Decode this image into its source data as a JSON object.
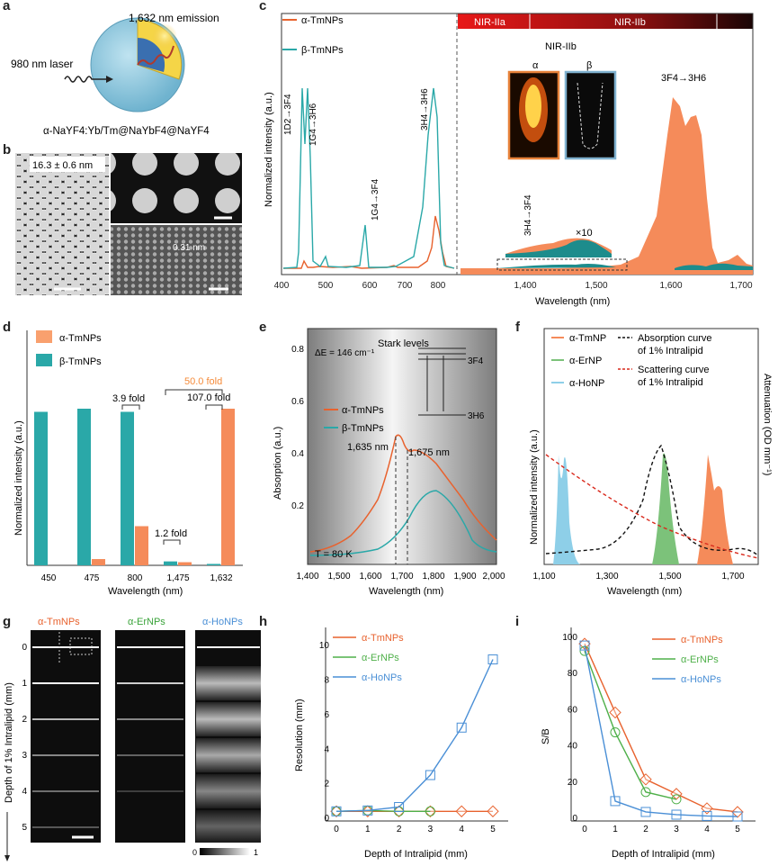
{
  "panel_letters": {
    "a": "a",
    "b": "b",
    "c": "c",
    "d": "d",
    "e": "e",
    "f": "f",
    "g": "g",
    "h": "h",
    "i": "i"
  },
  "panel_a": {
    "emission": "1,632 nm emission",
    "laser": "980 nm laser",
    "formula": "α-NaYF4:Yb/Tm@NaYbF4@NaYF4"
  },
  "panel_b": {
    "size": "16.3 ± 0.6 nm",
    "lattice": "0.31 nm"
  },
  "panel_c": {
    "legend": [
      "α-TmNPs",
      "β-TmNPs"
    ],
    "ylabel": "Normalized intensity (a.u.)",
    "xlabel": "Wavelength (nm)",
    "bands": [
      "NIR-IIa",
      "NIR-IIb"
    ],
    "inset_title": "NIR-IIb",
    "inset_labels": [
      "α",
      "β"
    ],
    "magnify": "×10",
    "transitions": [
      "1D2→3F4",
      "1G4→3H6",
      "1G4→3F4",
      "3H4→3H6",
      "3H4→3F4",
      "3F4→3H6"
    ],
    "left_ticks": [
      "400",
      "500",
      "600",
      "700",
      "800"
    ],
    "right_ticks": [
      "1,400",
      "1,500",
      "1,600",
      "1,700"
    ]
  },
  "panel_d": {
    "legend": [
      "α-TmNPs",
      "β-TmNPs"
    ],
    "ylabel": "Normalized intensity (a.u.)",
    "xlabel": "Wavelength (nm)",
    "folds": [
      "3.9 fold",
      "1.2 fold",
      "50.0 fold",
      "107.0 fold"
    ],
    "chart_data": {
      "type": "bar",
      "categories": [
        "450",
        "475",
        "800",
        "1,475",
        "1,632"
      ],
      "series": [
        {
          "name": "α-TmNPs",
          "values": [
            0.0,
            0.04,
            0.25,
            0.02,
            1.0
          ]
        },
        {
          "name": "β-TmNPs",
          "values": [
            0.98,
            1.0,
            0.98,
            0.025,
            0.009
          ]
        }
      ],
      "ylim": [
        0,
        1.5
      ]
    }
  },
  "panel_e": {
    "legend": [
      "α-TmNPs",
      "β-TmNPs"
    ],
    "ylabel": "Absorption (a.u.)",
    "xlabel": "Wavelength (nm)",
    "delta": "ΔE = 146 cm⁻¹",
    "stark": "Stark levels",
    "level_upper": "3F4",
    "level_lower": "3H6",
    "peak1": "1,635 nm",
    "peak2": "1,675 nm",
    "temp": "T = 80 K",
    "xticks": [
      "1,400",
      "1,500",
      "1,600",
      "1,700",
      "1,800",
      "1,900",
      "2,000"
    ],
    "yticks": [
      "0.2",
      "0.4",
      "0.6",
      "0.8"
    ]
  },
  "panel_f": {
    "legend": [
      "α-TmNP",
      "α-ErNP",
      "α-HoNP"
    ],
    "legend2": [
      "Absorption curve",
      "of 1% Intralipid",
      "Scattering curve",
      "of 1% Intralipid"
    ],
    "ylabel": "Normalized intensity (a.u.)",
    "ylabel2": "Attenuation (OD mm⁻¹)",
    "xlabel": "Wavelength (nm)",
    "xticks": [
      "1,100",
      "1,300",
      "1,500",
      "1,700"
    ]
  },
  "panel_g": {
    "cols": [
      "α-TmNPs",
      "α-ErNPs",
      "α-HoNPs"
    ],
    "ylabel": "Depth of 1% Intralipid (mm)",
    "depths": [
      "0",
      "1",
      "2",
      "3",
      "4",
      "5"
    ],
    "scale_min": "0",
    "scale_max": "1"
  },
  "panel_h": {
    "ylabel": "Resolution (mm)",
    "xlabel": "Depth of Intralipid (mm)",
    "chart_data": {
      "type": "line",
      "x": [
        0,
        1,
        2,
        3,
        4,
        5
      ],
      "series": [
        {
          "name": "α-TmNPs",
          "values": [
            0.35,
            0.35,
            0.35,
            0.35,
            0.35,
            0.35
          ]
        },
        {
          "name": "α-ErNPs",
          "values": [
            0.35,
            0.4,
            0.35,
            0.35,
            null,
            null
          ]
        },
        {
          "name": "α-HoNPs",
          "values": [
            0.35,
            0.4,
            0.6,
            2.45,
            5.2,
            9.15
          ]
        }
      ],
      "ylim": [
        0,
        11
      ]
    },
    "xticks": [
      "0",
      "1",
      "2",
      "3",
      "4",
      "5"
    ],
    "yticks": [
      "0",
      "2",
      "4",
      "6",
      "8",
      "10"
    ]
  },
  "panel_i": {
    "ylabel": "S/B",
    "xlabel": "Depth of Intralipid (mm)",
    "chart_data": {
      "type": "line",
      "x": [
        0,
        1,
        2,
        3,
        4,
        5
      ],
      "series": [
        {
          "name": "α-TmNPs",
          "values": [
            96,
            58,
            21,
            13,
            5,
            3
          ]
        },
        {
          "name": "α-ErNPs",
          "values": [
            92,
            47,
            14,
            10,
            null,
            null
          ]
        },
        {
          "name": "α-HoNPs",
          "values": [
            95,
            9,
            3,
            1.5,
            0.8,
            0.5
          ]
        }
      ],
      "ylim": [
        0,
        105
      ]
    },
    "xticks": [
      "0",
      "1",
      "2",
      "3",
      "4",
      "5"
    ],
    "yticks": [
      "0",
      "20",
      "40",
      "60",
      "80",
      "100"
    ]
  },
  "colors": {
    "tm": "#f58b5a",
    "tmDark": "#e8622e",
    "beta": "#2aa8a8",
    "er": "#4fb04a",
    "ho": "#4a8fd6",
    "red": "#d9291c"
  }
}
